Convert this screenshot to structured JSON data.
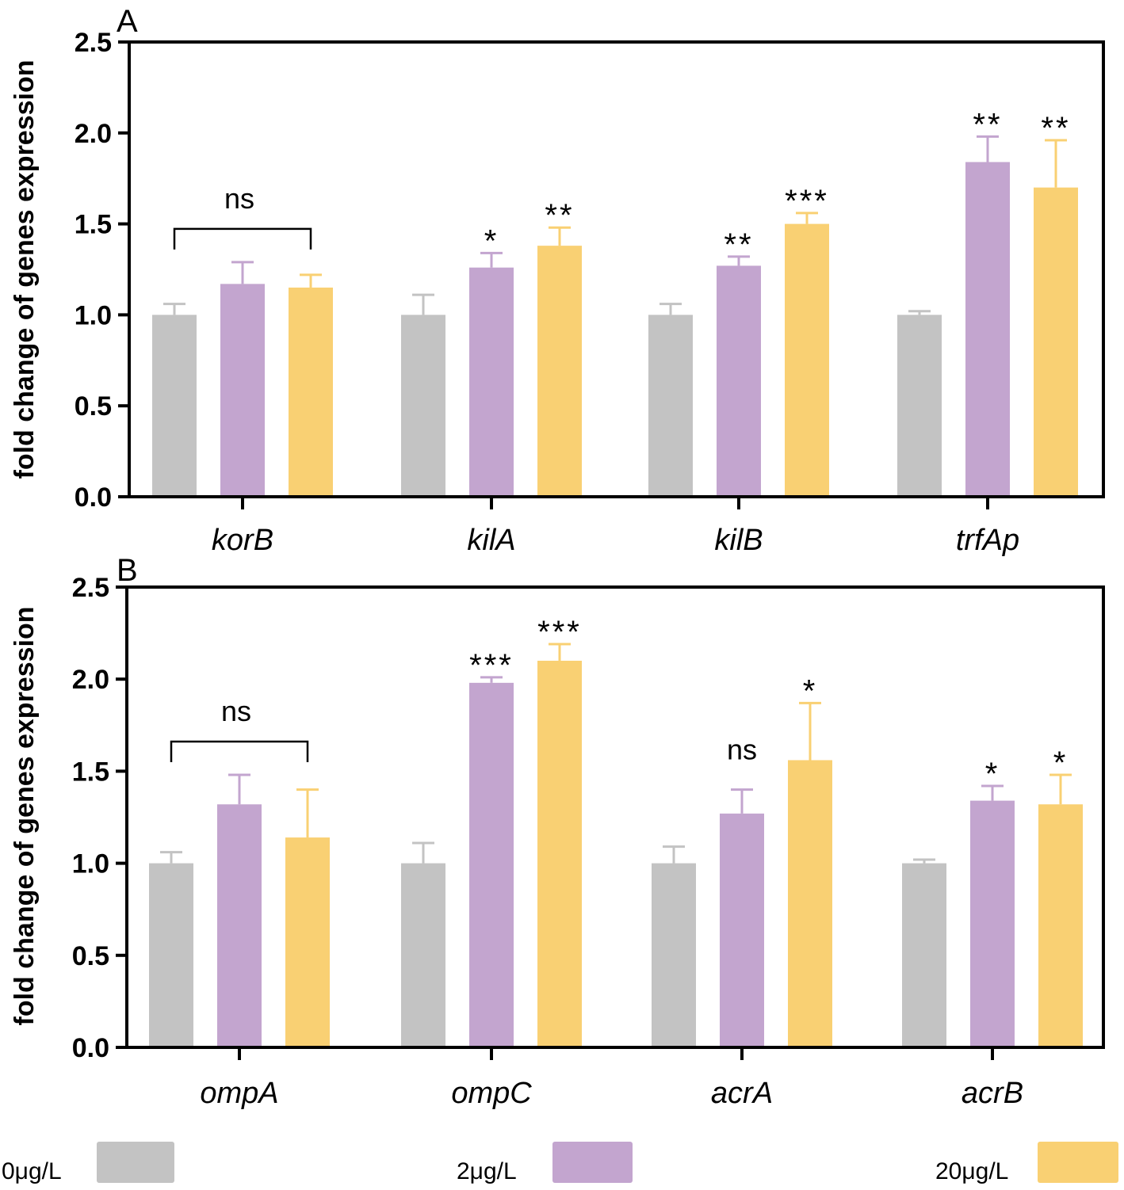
{
  "colors": {
    "s0": "#c3c3c3",
    "s1": "#c3a5cf",
    "s2": "#f9d073"
  },
  "legend": [
    {
      "label": "0μg/L",
      "color": "#c3c3c3"
    },
    {
      "label": "2μg/L",
      "color": "#c3a5cf"
    },
    {
      "label": "20μg/L",
      "color": "#f9d073"
    }
  ],
  "chart_data": [
    {
      "type": "bar",
      "panel_label": "A",
      "ylabel": "fold change of genes expression",
      "ylim": [
        0,
        2.5
      ],
      "yticks": [
        "0.0",
        "0.5",
        "1.0",
        "1.5",
        "2.0",
        "2.5"
      ],
      "categories": [
        "korB",
        "kilA",
        "kilB",
        "trfAp"
      ],
      "series": [
        {
          "name": "0μg/L",
          "values": [
            1.0,
            1.0,
            1.0,
            1.0
          ],
          "errors": [
            0.06,
            0.11,
            0.06,
            0.02
          ]
        },
        {
          "name": "2μg/L",
          "values": [
            1.17,
            1.26,
            1.27,
            1.84
          ],
          "errors": [
            0.12,
            0.08,
            0.05,
            0.14
          ]
        },
        {
          "name": "20μg/L",
          "values": [
            1.15,
            1.38,
            1.5,
            1.7
          ],
          "errors": [
            0.07,
            0.1,
            0.06,
            0.26
          ]
        }
      ],
      "annotations": [
        {
          "category": 0,
          "series": "bracket",
          "text": "ns"
        },
        {
          "category": 1,
          "series": 1,
          "text": "*"
        },
        {
          "category": 1,
          "series": 2,
          "text": "**"
        },
        {
          "category": 2,
          "series": 1,
          "text": "**"
        },
        {
          "category": 2,
          "series": 2,
          "text": "***"
        },
        {
          "category": 3,
          "series": 1,
          "text": "**"
        },
        {
          "category": 3,
          "series": 2,
          "text": "**"
        }
      ]
    },
    {
      "type": "bar",
      "panel_label": "B",
      "ylabel": "fold change of genes expression",
      "ylim": [
        0,
        2.5
      ],
      "yticks": [
        "0.0",
        "0.5",
        "1.0",
        "1.5",
        "2.0",
        "2.5"
      ],
      "categories": [
        "ompA",
        "ompC",
        "acrA",
        "acrB"
      ],
      "series": [
        {
          "name": "0μg/L",
          "values": [
            1.0,
            1.0,
            1.0,
            1.0
          ],
          "errors": [
            0.06,
            0.11,
            0.09,
            0.02
          ]
        },
        {
          "name": "2μg/L",
          "values": [
            1.32,
            1.98,
            1.27,
            1.34
          ],
          "errors": [
            0.16,
            0.03,
            0.13,
            0.08
          ]
        },
        {
          "name": "20μg/L",
          "values": [
            1.14,
            2.1,
            1.56,
            1.32
          ],
          "errors": [
            0.26,
            0.09,
            0.31,
            0.16
          ]
        }
      ],
      "annotations": [
        {
          "category": 0,
          "series": "bracket",
          "text": "ns"
        },
        {
          "category": 1,
          "series": 1,
          "text": "***"
        },
        {
          "category": 1,
          "series": 2,
          "text": "***"
        },
        {
          "category": 2,
          "series": 1,
          "text": "ns"
        },
        {
          "category": 2,
          "series": 2,
          "text": "*"
        },
        {
          "category": 3,
          "series": 1,
          "text": "*"
        },
        {
          "category": 3,
          "series": 2,
          "text": "*"
        }
      ]
    }
  ]
}
